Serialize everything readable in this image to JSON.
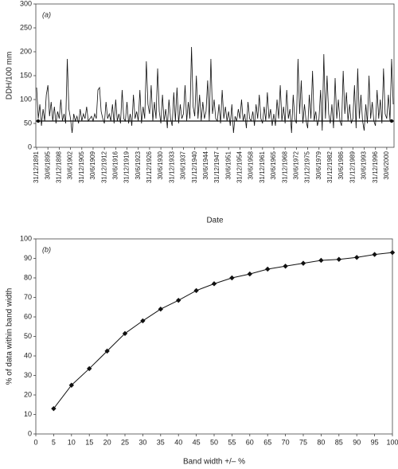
{
  "chart_data": [
    {
      "type": "line",
      "panel_label": "(a)",
      "y_label": "DDH/100 mm",
      "x_label": "Date",
      "ylim": [
        0,
        300
      ],
      "yticks": [
        0,
        50,
        100,
        150,
        200,
        250,
        300
      ],
      "color": "#111",
      "reference_line": 55,
      "categories": [
        "31/12/1891",
        null,
        null,
        null,
        null,
        null,
        null,
        "30/6/1895",
        null,
        null,
        null,
        null,
        null,
        null,
        "31/12/1898",
        null,
        null,
        null,
        null,
        null,
        null,
        "30/6/1902",
        null,
        null,
        null,
        null,
        null,
        null,
        "31/12/1905",
        null,
        null,
        null,
        null,
        null,
        null,
        "30/6/1909",
        null,
        null,
        null,
        null,
        null,
        null,
        "31/12/1912",
        null,
        null,
        null,
        null,
        null,
        null,
        "30/6/1916",
        null,
        null,
        null,
        null,
        null,
        null,
        "31/12/1919",
        null,
        null,
        null,
        null,
        null,
        null,
        "30/6/1923",
        null,
        null,
        null,
        null,
        null,
        null,
        "31/12/1926",
        null,
        null,
        null,
        null,
        null,
        null,
        "30/6/1930",
        null,
        null,
        null,
        null,
        null,
        null,
        "31/12/1933",
        null,
        null,
        null,
        null,
        null,
        null,
        "30/6/1937",
        null,
        null,
        null,
        null,
        null,
        null,
        "31/12/1940",
        null,
        null,
        null,
        null,
        null,
        null,
        "30/6/1944",
        null,
        null,
        null,
        null,
        null,
        null,
        "31/12/1947",
        null,
        null,
        null,
        null,
        null,
        null,
        "30/6/1951",
        null,
        null,
        null,
        null,
        null,
        null,
        "31/12/1954",
        null,
        null,
        null,
        null,
        null,
        null,
        "30/6/1958",
        null,
        null,
        null,
        null,
        null,
        null,
        "31/12/1961",
        null,
        null,
        null,
        null,
        null,
        null,
        "30/6/1965",
        null,
        null,
        null,
        null,
        null,
        null,
        "31/12/1968",
        null,
        null,
        null,
        null,
        null,
        null,
        "30/6/1972",
        null,
        null,
        null,
        null,
        null,
        null,
        "31/12/1975",
        null,
        null,
        null,
        null,
        null,
        null,
        "30/6/1979",
        null,
        null,
        null,
        null,
        null,
        null,
        "31/12/1982",
        null,
        null,
        null,
        null,
        null,
        null,
        "30/6/1986",
        null,
        null,
        null,
        null,
        null,
        null,
        "31/12/1989",
        null,
        null,
        null,
        null,
        null,
        null,
        "30/6/1993",
        null,
        null,
        null,
        null,
        null,
        null,
        "31/12/1996",
        null,
        null,
        null,
        null,
        null,
        null,
        "30/6/2000",
        null,
        null,
        null,
        null
      ],
      "values": [
        125,
        60,
        90,
        45,
        80,
        55,
        110,
        130,
        65,
        95,
        55,
        85,
        50,
        75,
        60,
        100,
        55,
        70,
        50,
        185,
        80,
        60,
        30,
        70,
        55,
        65,
        50,
        80,
        55,
        70,
        60,
        85,
        55,
        60,
        65,
        55,
        70,
        60,
        120,
        125,
        75,
        60,
        50,
        95,
        60,
        70,
        55,
        90,
        50,
        100,
        55,
        70,
        50,
        120,
        60,
        55,
        95,
        50,
        70,
        45,
        110,
        60,
        75,
        55,
        120,
        50,
        85,
        60,
        180,
        90,
        70,
        130,
        55,
        95,
        60,
        165,
        75,
        50,
        110,
        55,
        80,
        40,
        100,
        60,
        45,
        115,
        55,
        125,
        50,
        90,
        60,
        70,
        130,
        55,
        95,
        60,
        210,
        85,
        65,
        150,
        60,
        110,
        55,
        95,
        60,
        75,
        140,
        55,
        185,
        70,
        100,
        60,
        55,
        90,
        50,
        120,
        60,
        85,
        55,
        75,
        45,
        90,
        30,
        65,
        55,
        80,
        60,
        100,
        55,
        70,
        40,
        95,
        60,
        55,
        75,
        45,
        90,
        60,
        110,
        60,
        50,
        85,
        55,
        115,
        60,
        80,
        45,
        70,
        45,
        100,
        60,
        130,
        55,
        85,
        50,
        120,
        60,
        80,
        30,
        110,
        60,
        50,
        185,
        70,
        140,
        50,
        90,
        55,
        40,
        110,
        60,
        160,
        55,
        75,
        45,
        60,
        120,
        35,
        195,
        60,
        150,
        70,
        50,
        90,
        40,
        145,
        60,
        100,
        55,
        45,
        160,
        70,
        115,
        55,
        90,
        50,
        60,
        130,
        40,
        165,
        60,
        110,
        55,
        35,
        90,
        50,
        150,
        60,
        95,
        55,
        45,
        120,
        60,
        100,
        50,
        165,
        70,
        60,
        110,
        55,
        185,
        90
      ]
    },
    {
      "type": "line",
      "panel_label": "(b)",
      "y_label": "% of data within band width",
      "x_label": "Band width +/– %",
      "xlim": [
        0,
        100
      ],
      "xticks": [
        0,
        5,
        10,
        15,
        20,
        25,
        30,
        35,
        40,
        45,
        50,
        55,
        60,
        65,
        70,
        75,
        80,
        85,
        90,
        95,
        100
      ],
      "ylim": [
        0,
        100
      ],
      "yticks": [
        0,
        10,
        20,
        30,
        40,
        50,
        60,
        70,
        80,
        90,
        100
      ],
      "color": "#111",
      "markers": "diamond",
      "x": [
        5,
        10,
        15,
        20,
        25,
        30,
        35,
        40,
        45,
        50,
        55,
        60,
        65,
        70,
        75,
        80,
        85,
        90,
        95,
        100
      ],
      "values": [
        13,
        25,
        33.5,
        42.5,
        51.5,
        58,
        64,
        68.5,
        73.5,
        77,
        80,
        82,
        84.5,
        86,
        87.5,
        89,
        89.5,
        90.5,
        92,
        93
      ]
    }
  ]
}
